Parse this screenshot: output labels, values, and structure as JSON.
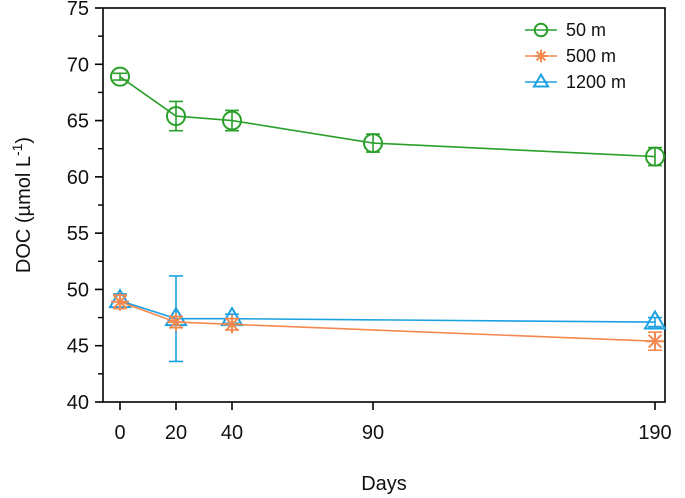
{
  "chart_data": {
    "type": "line",
    "title": "",
    "xlabel": "Days",
    "ylabel": "DOC (µmol L",
    "ylabel_superscript": "-1",
    "ylabel_close": ")",
    "x": [
      0,
      20,
      40,
      90,
      190
    ],
    "x_tick_labels": [
      "0",
      "20",
      "40",
      "90",
      "190"
    ],
    "ylim": [
      40,
      75
    ],
    "y_ticks": [
      40,
      45,
      50,
      55,
      60,
      65,
      70,
      75
    ],
    "y_tick_labels": [
      "40",
      "45",
      "50",
      "55",
      "60",
      "65",
      "70",
      "75"
    ],
    "grid": false,
    "legend_position": "top-right",
    "series": [
      {
        "name": "50 m",
        "marker": "circle",
        "color": "#2aa02a",
        "values": [
          68.9,
          65.4,
          65.0,
          63.0,
          61.8
        ],
        "errors": [
          0.3,
          1.3,
          0.9,
          0.8,
          0.8
        ]
      },
      {
        "name": "500 m",
        "marker": "asterisk",
        "color": "#f4894f",
        "values": [
          48.9,
          47.1,
          46.9,
          null,
          45.4
        ],
        "errors": [
          0.6,
          0.5,
          0.5,
          null,
          0.8
        ]
      },
      {
        "name": "1200 m",
        "marker": "triangle",
        "color": "#1ba1e2",
        "values": [
          49.0,
          47.4,
          47.4,
          null,
          47.1
        ],
        "errors": [
          0.6,
          3.8,
          0.4,
          null,
          0.4
        ]
      }
    ]
  }
}
